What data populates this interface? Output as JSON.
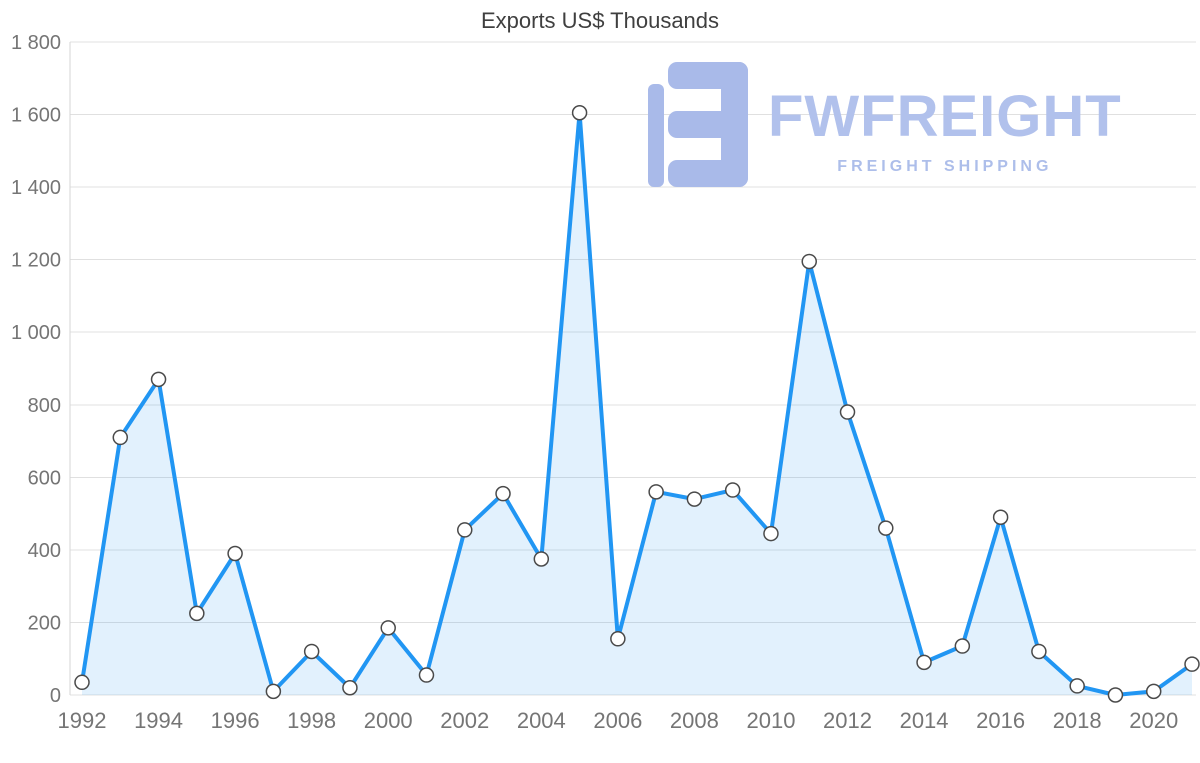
{
  "watermark": {
    "brand": "FWFREIGHT",
    "tagline": "FREIGHT SHIPPING",
    "logo_icon": "fw-freight-logo-glyph",
    "color": "#b1c1ec"
  },
  "chart_data": {
    "type": "area",
    "title": "Exports US$ Thousands",
    "xlabel": "",
    "ylabel": "",
    "x": [
      1992,
      1993,
      1994,
      1995,
      1996,
      1997,
      1998,
      1999,
      2000,
      2001,
      2002,
      2003,
      2004,
      2005,
      2006,
      2007,
      2008,
      2009,
      2010,
      2011,
      2012,
      2013,
      2014,
      2015,
      2016,
      2017,
      2018,
      2019,
      2020,
      2021
    ],
    "series": [
      {
        "name": "Exports US$ Thousands",
        "values": [
          35,
          710,
          870,
          225,
          390,
          10,
          120,
          20,
          185,
          55,
          455,
          555,
          375,
          1605,
          155,
          560,
          540,
          565,
          445,
          1195,
          780,
          460,
          90,
          135,
          490,
          120,
          25,
          0,
          10,
          85
        ]
      }
    ],
    "ylim": [
      0,
      1800
    ],
    "yticks": [
      0,
      200,
      400,
      600,
      800,
      1000,
      1200,
      1400,
      1600,
      1800
    ],
    "ytick_labels": [
      "0",
      "200",
      "400",
      "600",
      "800",
      "1 000",
      "1 200",
      "1 400",
      "1 600",
      "1 800"
    ],
    "xticks": [
      1992,
      1994,
      1996,
      1998,
      2000,
      2002,
      2004,
      2006,
      2008,
      2010,
      2012,
      2014,
      2016,
      2018,
      2020
    ],
    "xtick_labels": [
      "1992",
      "1994",
      "1996",
      "1998",
      "2000",
      "2002",
      "2004",
      "2006",
      "2008",
      "2010",
      "2012",
      "2014",
      "2016",
      "2018",
      "2020"
    ],
    "grid": "horizontal",
    "legend": "none",
    "colors": {
      "line": "#2196f3",
      "area_fill": "rgba(33,150,243,0.13)",
      "marker_fill": "#ffffff",
      "marker_stroke": "#4a4a4a",
      "grid": "#e0e0e0",
      "tick_text": "#757575"
    }
  }
}
